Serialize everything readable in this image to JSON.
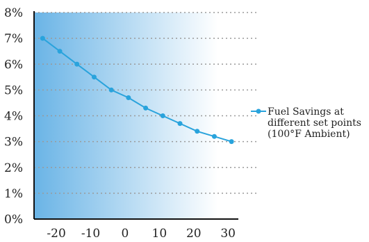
{
  "chart_data": {
    "type": "line",
    "x_ticks": [
      "-20",
      "-10",
      "0",
      "10",
      "20",
      "30"
    ],
    "y_ticks": [
      "0%",
      "1%",
      "2%",
      "3%",
      "4%",
      "5%",
      "6%",
      "7%",
      "8%"
    ],
    "xlim": [
      -26.5,
      33
    ],
    "ylim": [
      0,
      8
    ],
    "grid": "horizontal dotted",
    "legend_position": "right",
    "series": [
      {
        "name": "Fuel Savings at different set points (100°F Ambient)",
        "legend_lines": [
          "Fuel Savings at",
          "different set points",
          "(100°F Ambient)"
        ],
        "color": "#29a3dc",
        "x": [
          -24,
          -19,
          -14,
          -9,
          -4,
          1,
          6,
          11,
          16,
          21,
          26,
          31
        ],
        "y": [
          7.0,
          6.5,
          6.0,
          5.5,
          5.0,
          4.7,
          4.3,
          4.0,
          3.7,
          3.4,
          3.2,
          3.0
        ]
      }
    ]
  },
  "colors": {
    "gradient_left": "#6ab4e6",
    "gradient_right": "#ffffff",
    "axis": "#111111",
    "grid": "#9a9a9a"
  }
}
